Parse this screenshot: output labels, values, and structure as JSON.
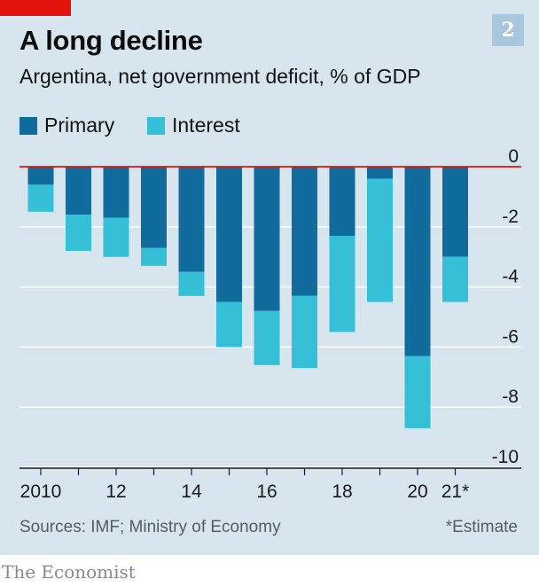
{
  "title": "A long decline",
  "badge": "2",
  "subtitle": "Argentina, net government deficit, % of GDP",
  "colors": {
    "primary": "#0f6c9d",
    "interest": "#35c0d8",
    "zero_line": "#e3120b",
    "grid": "#ffffff",
    "panel": "#d6e5ee",
    "brand_tag": "#e3120b"
  },
  "legend": {
    "primary": "Primary",
    "interest": "Interest"
  },
  "footer": {
    "source": "Sources: IMF; Ministry of Economy",
    "note": "*Estimate",
    "brand": "The Economist"
  },
  "chart_data": {
    "type": "bar",
    "stacked": true,
    "categories": [
      "2010",
      "2011",
      "2012",
      "2013",
      "2014",
      "2015",
      "2016",
      "2017",
      "2018",
      "2019",
      "2020",
      "2021*"
    ],
    "x_tick_labels": [
      "2010",
      "",
      "12",
      "",
      "14",
      "",
      "16",
      "",
      "18",
      "",
      "20",
      "21*"
    ],
    "series": [
      {
        "name": "Primary",
        "values": [
          -0.6,
          -1.6,
          -1.7,
          -2.7,
          -3.5,
          -4.5,
          -4.8,
          -4.3,
          -2.3,
          -0.4,
          -6.3,
          -3.0
        ]
      },
      {
        "name": "Interest",
        "values": [
          -0.9,
          -1.2,
          -1.3,
          -0.6,
          -0.8,
          -1.5,
          -1.8,
          -2.4,
          -3.2,
          -4.1,
          -2.4,
          -1.5
        ]
      }
    ],
    "ylim": [
      -10,
      0
    ],
    "y_ticks": [
      0,
      -2,
      -4,
      -6,
      -8,
      -10
    ],
    "y_tick_labels": [
      "0",
      "-2",
      "-4",
      "-6",
      "-8",
      "-10"
    ],
    "grid": true,
    "y_axis_position": "right",
    "legend_position": "top-left"
  }
}
